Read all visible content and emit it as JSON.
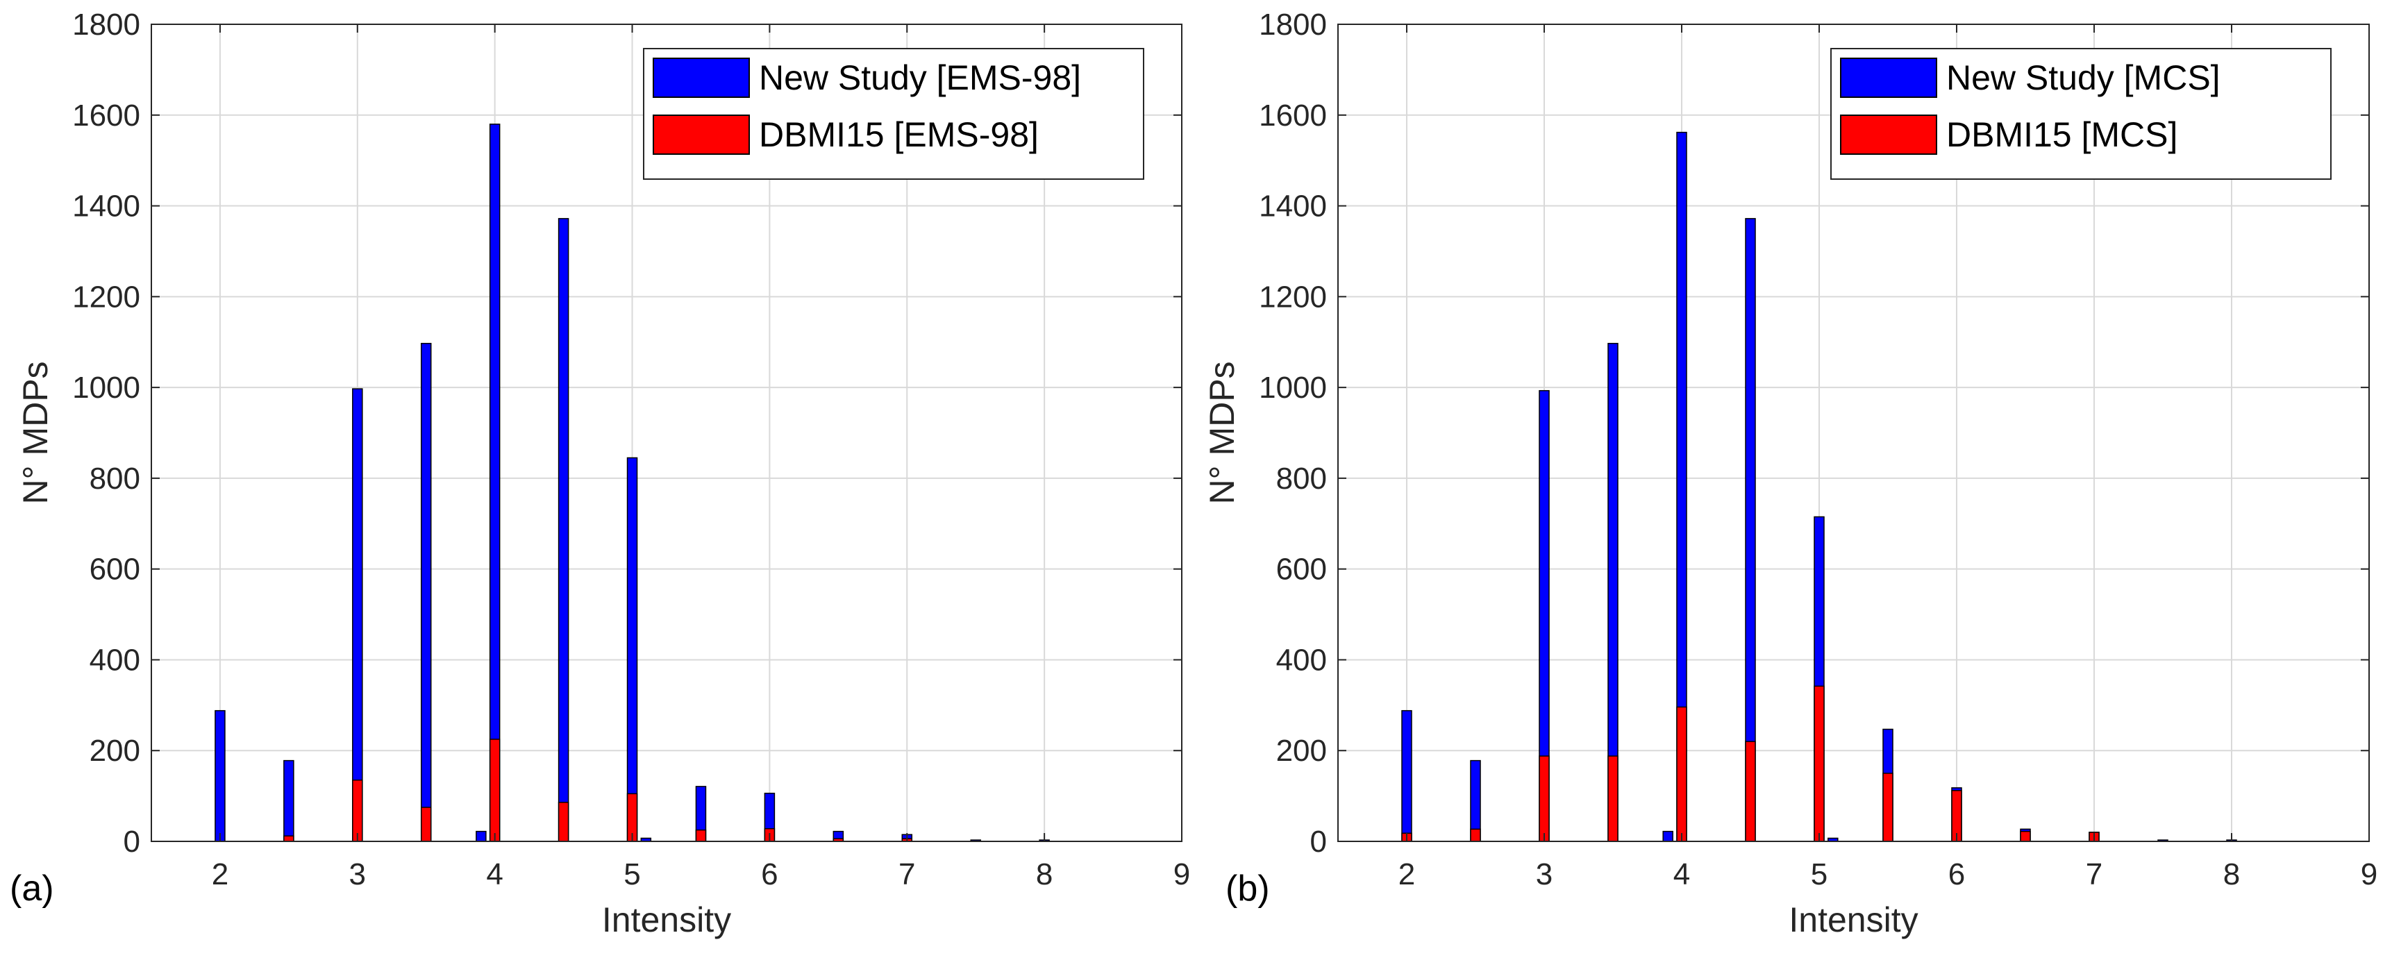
{
  "figure": {
    "panels": [
      {
        "id": "a",
        "panel_label": "(a)",
        "legend": [
          "New Study [EMS-98]",
          "DBMI15 [EMS-98]"
        ]
      },
      {
        "id": "b",
        "panel_label": "(b)",
        "legend": [
          "New Study [MCS]",
          "DBMI15 [MCS]"
        ]
      }
    ]
  },
  "colors": {
    "new_study": "#0000ff",
    "dbmi15": "#ff0000",
    "grid": "#d9d9d9",
    "axis": "#262626"
  },
  "chart_data": [
    {
      "type": "bar",
      "title": "",
      "xlabel": "Intensity",
      "ylabel": "N° MDPs",
      "xlim": [
        1.5,
        9
      ],
      "ylim": [
        0,
        1800
      ],
      "xticks": [
        2,
        3,
        4,
        5,
        6,
        7,
        8,
        9
      ],
      "yticks": [
        0,
        200,
        400,
        600,
        800,
        1000,
        1200,
        1400,
        1600,
        1800
      ],
      "grid": true,
      "legend_position": "top-right",
      "bar_layout": "stacked",
      "series": [
        {
          "name": "New Study [EMS-98]",
          "color": "#0000ff",
          "x": [
            2,
            2.5,
            3,
            3.5,
            4,
            4.5,
            5,
            5.5,
            6,
            6.5,
            7,
            7.5,
            8
          ],
          "values": [
            288,
            178,
            997,
            1097,
            1580,
            1372,
            845,
            121,
            106,
            22,
            15,
            3,
            3
          ]
        },
        {
          "name": "DBMI15 [EMS-98]",
          "color": "#ff0000",
          "x": [
            2,
            2.5,
            3,
            3.5,
            4,
            4.5,
            5,
            5.5,
            6,
            6.5,
            7,
            7.5,
            8
          ],
          "values": [
            0,
            12,
            135,
            75,
            225,
            86,
            105,
            25,
            28,
            6,
            6,
            0,
            0
          ]
        }
      ],
      "extra_bars": [
        {
          "series": "New Study [EMS-98]",
          "x": 3.9,
          "value": 22
        },
        {
          "series": "New Study [EMS-98]",
          "x": 5.1,
          "value": 7
        }
      ]
    },
    {
      "type": "bar",
      "title": "",
      "xlabel": "Intensity",
      "ylabel": "N° MDPs",
      "xlim": [
        1.5,
        9
      ],
      "ylim": [
        0,
        1800
      ],
      "xticks": [
        2,
        3,
        4,
        5,
        6,
        7,
        8,
        9
      ],
      "yticks": [
        0,
        200,
        400,
        600,
        800,
        1000,
        1200,
        1400,
        1600,
        1800
      ],
      "grid": true,
      "legend_position": "top-right",
      "bar_layout": "stacked",
      "series": [
        {
          "name": "New Study [MCS]",
          "color": "#0000ff",
          "x": [
            2,
            2.5,
            3,
            3.5,
            4,
            4.5,
            5,
            5.5,
            6,
            6.5,
            7,
            7.5,
            8
          ],
          "values": [
            288,
            178,
            993,
            1097,
            1562,
            1372,
            715,
            247,
            118,
            27,
            20,
            3,
            3
          ]
        },
        {
          "name": "DBMI15 [MCS]",
          "color": "#ff0000",
          "x": [
            2,
            2.5,
            3,
            3.5,
            4,
            4.5,
            5,
            5.5,
            6,
            6.5,
            7,
            7.5,
            8
          ],
          "values": [
            18,
            27,
            188,
            188,
            296,
            220,
            342,
            150,
            112,
            22,
            20,
            0,
            0
          ]
        }
      ],
      "extra_bars": [
        {
          "series": "New Study [MCS]",
          "x": 3.9,
          "value": 22
        },
        {
          "series": "New Study [MCS]",
          "x": 5.1,
          "value": 7
        }
      ]
    }
  ]
}
